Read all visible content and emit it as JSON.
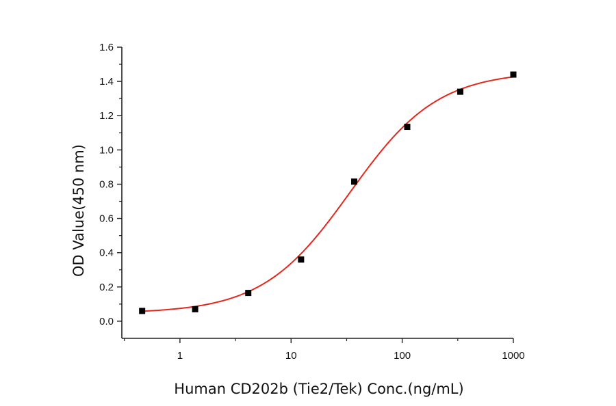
{
  "chart_data": {
    "type": "scatter",
    "title": "",
    "xlabel": "Human CD202b (Tie2/Tek) Conc.(ng/mL)",
    "ylabel": "OD Value(450 nm)",
    "x_scale": "log",
    "xlim": [
      0.3,
      1000
    ],
    "ylim": [
      -0.1,
      1.6
    ],
    "x_ticks": [
      1,
      10,
      100,
      1000
    ],
    "x_tick_labels": [
      "1",
      "10",
      "100",
      "1000"
    ],
    "y_ticks": [
      0.0,
      0.2,
      0.4,
      0.6,
      0.8,
      1.0,
      1.2,
      1.4,
      1.6
    ],
    "y_tick_labels": [
      "0.0",
      "0.2",
      "0.4",
      "0.6",
      "0.8",
      "1.0",
      "1.2",
      "1.4",
      "1.6"
    ],
    "grid": false,
    "legend": "none",
    "series": [
      {
        "kind": "points",
        "color": "#000000",
        "marker": "square",
        "x": [
          0.457,
          1.37,
          4.12,
          12.3,
          37.0,
          111,
          333,
          1000
        ],
        "y": [
          0.06,
          0.07,
          0.165,
          0.36,
          0.815,
          1.135,
          1.34,
          1.44
        ]
      },
      {
        "kind": "fit-curve",
        "color": "#e8251b",
        "model": "4PL",
        "params": {
          "bottom": 0.046,
          "top": 1.46,
          "ec50": 34,
          "hill": 1.1
        },
        "x_range": [
          0.457,
          1000
        ]
      }
    ]
  }
}
